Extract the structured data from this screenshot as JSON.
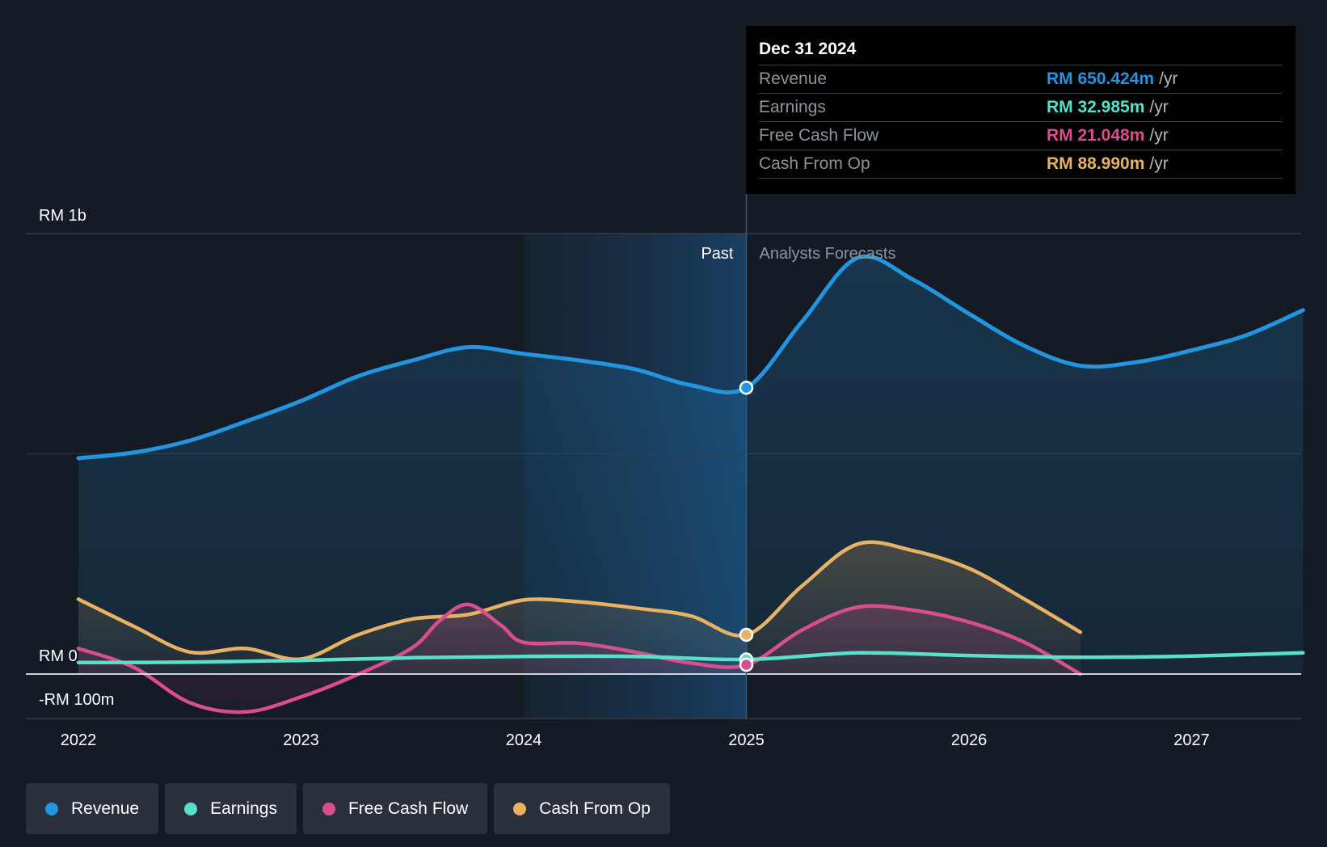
{
  "chart_data": {
    "type": "line",
    "title": "",
    "x_ticks": [
      "2022",
      "2023",
      "2024",
      "2025",
      "2026",
      "2027"
    ],
    "y_ticks": [
      {
        "label": "RM 1b",
        "value": 1000
      },
      {
        "label": "RM 0",
        "value": 0
      },
      {
        "label": "-RM 100m",
        "value": -100
      }
    ],
    "ylim": [
      -100,
      1000
    ],
    "xlim": [
      2021.75,
      2027.5
    ],
    "past_label": "Past",
    "forecast_label": "Analysts Forecasts",
    "divider_x": 2025.0,
    "shade_start_x": 2024.0,
    "series": [
      {
        "name": "Revenue",
        "color": "#2394df",
        "area": true,
        "x": [
          2022.0,
          2022.25,
          2022.5,
          2022.75,
          2023.0,
          2023.25,
          2023.5,
          2023.75,
          2024.0,
          2024.25,
          2024.5,
          2024.75,
          2025.0,
          2025.25,
          2025.5,
          2025.75,
          2026.0,
          2026.25,
          2026.5,
          2026.75,
          2027.0,
          2027.25,
          2027.5
        ],
        "values": [
          490,
          503,
          530,
          573,
          620,
          675,
          712,
          742,
          727,
          712,
          692,
          656,
          650,
          800,
          945,
          895,
          818,
          745,
          700,
          708,
          735,
          770,
          826
        ]
      },
      {
        "name": "Earnings",
        "color": "#58e0cb",
        "area": false,
        "x": [
          2022.0,
          2022.5,
          2023.0,
          2023.5,
          2024.0,
          2024.5,
          2025.0,
          2025.5,
          2026.0,
          2026.5,
          2027.0,
          2027.5
        ],
        "values": [
          26,
          27,
          31,
          37,
          40,
          40,
          33,
          48,
          42,
          38,
          41,
          48
        ]
      },
      {
        "name": "Free Cash Flow",
        "color": "#d94f8e",
        "area": true,
        "x": [
          2022.0,
          2022.25,
          2022.5,
          2022.75,
          2023.0,
          2023.25,
          2023.5,
          2023.62,
          2023.75,
          2023.9,
          2024.0,
          2024.25,
          2024.5,
          2024.75,
          2025.0,
          2025.25,
          2025.5,
          2025.75,
          2026.0,
          2026.25,
          2026.5
        ],
        "values": [
          58,
          15,
          -65,
          -86,
          -52,
          -2,
          60,
          120,
          158,
          110,
          72,
          70,
          50,
          25,
          21,
          100,
          152,
          145,
          118,
          72,
          0
        ]
      },
      {
        "name": "Cash From Op",
        "color": "#e8b265",
        "area": true,
        "x": [
          2022.0,
          2022.25,
          2022.5,
          2022.75,
          2023.0,
          2023.25,
          2023.5,
          2023.75,
          2024.0,
          2024.25,
          2024.5,
          2024.75,
          2025.0,
          2025.25,
          2025.5,
          2025.75,
          2026.0,
          2026.25,
          2026.5
        ],
        "values": [
          170,
          108,
          50,
          58,
          34,
          88,
          125,
          135,
          168,
          164,
          150,
          132,
          89,
          200,
          295,
          280,
          240,
          170,
          95
        ]
      }
    ]
  },
  "tooltip": {
    "date": "Dec 31 2024",
    "rows": [
      {
        "label": "Revenue",
        "value": "RM 650.424m",
        "unit": "/yr",
        "color": "#2394df"
      },
      {
        "label": "Earnings",
        "value": "RM 32.985m",
        "unit": "/yr",
        "color": "#58e0cb"
      },
      {
        "label": "Free Cash Flow",
        "value": "RM 21.048m",
        "unit": "/yr",
        "color": "#d94f8e"
      },
      {
        "label": "Cash From Op",
        "value": "RM 88.990m",
        "unit": "/yr",
        "color": "#e8b265"
      }
    ]
  },
  "legend": [
    {
      "label": "Revenue",
      "color": "#2394df"
    },
    {
      "label": "Earnings",
      "color": "#58e0cb"
    },
    {
      "label": "Free Cash Flow",
      "color": "#d94f8e"
    },
    {
      "label": "Cash From Op",
      "color": "#e8b265"
    }
  ]
}
